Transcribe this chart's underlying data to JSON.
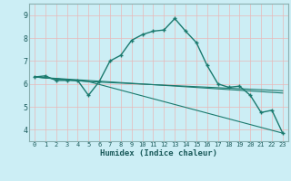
{
  "xlabel": "Humidex (Indice chaleur)",
  "background_color": "#cceef5",
  "grid_color": "#f0f0f0",
  "line_color": "#1a7a6e",
  "spine_color": "#8ab0b0",
  "xlim": [
    -0.5,
    23.5
  ],
  "ylim": [
    3.5,
    9.5
  ],
  "xticks": [
    0,
    1,
    2,
    3,
    4,
    5,
    6,
    7,
    8,
    9,
    10,
    11,
    12,
    13,
    14,
    15,
    16,
    17,
    18,
    19,
    20,
    21,
    22,
    23
  ],
  "yticks": [
    4,
    5,
    6,
    7,
    8,
    9
  ],
  "series_main": {
    "x": [
      0,
      1,
      2,
      3,
      4,
      5,
      6,
      7,
      8,
      9,
      10,
      11,
      12,
      13,
      14,
      15,
      16,
      17,
      18,
      19,
      20,
      21,
      22,
      23
    ],
    "y": [
      6.3,
      6.35,
      6.15,
      6.15,
      6.15,
      5.5,
      6.1,
      7.0,
      7.25,
      7.9,
      8.15,
      8.3,
      8.35,
      8.85,
      8.3,
      7.8,
      6.8,
      6.0,
      5.85,
      5.9,
      5.5,
      4.75,
      4.85,
      3.85
    ]
  },
  "series_line1": {
    "x": [
      0,
      5,
      23
    ],
    "y": [
      6.3,
      6.1,
      5.7
    ]
  },
  "series_line2": {
    "x": [
      0,
      5,
      23
    ],
    "y": [
      6.3,
      6.1,
      3.85
    ]
  },
  "series_line3": {
    "x": [
      0,
      23
    ],
    "y": [
      6.3,
      5.6
    ]
  }
}
